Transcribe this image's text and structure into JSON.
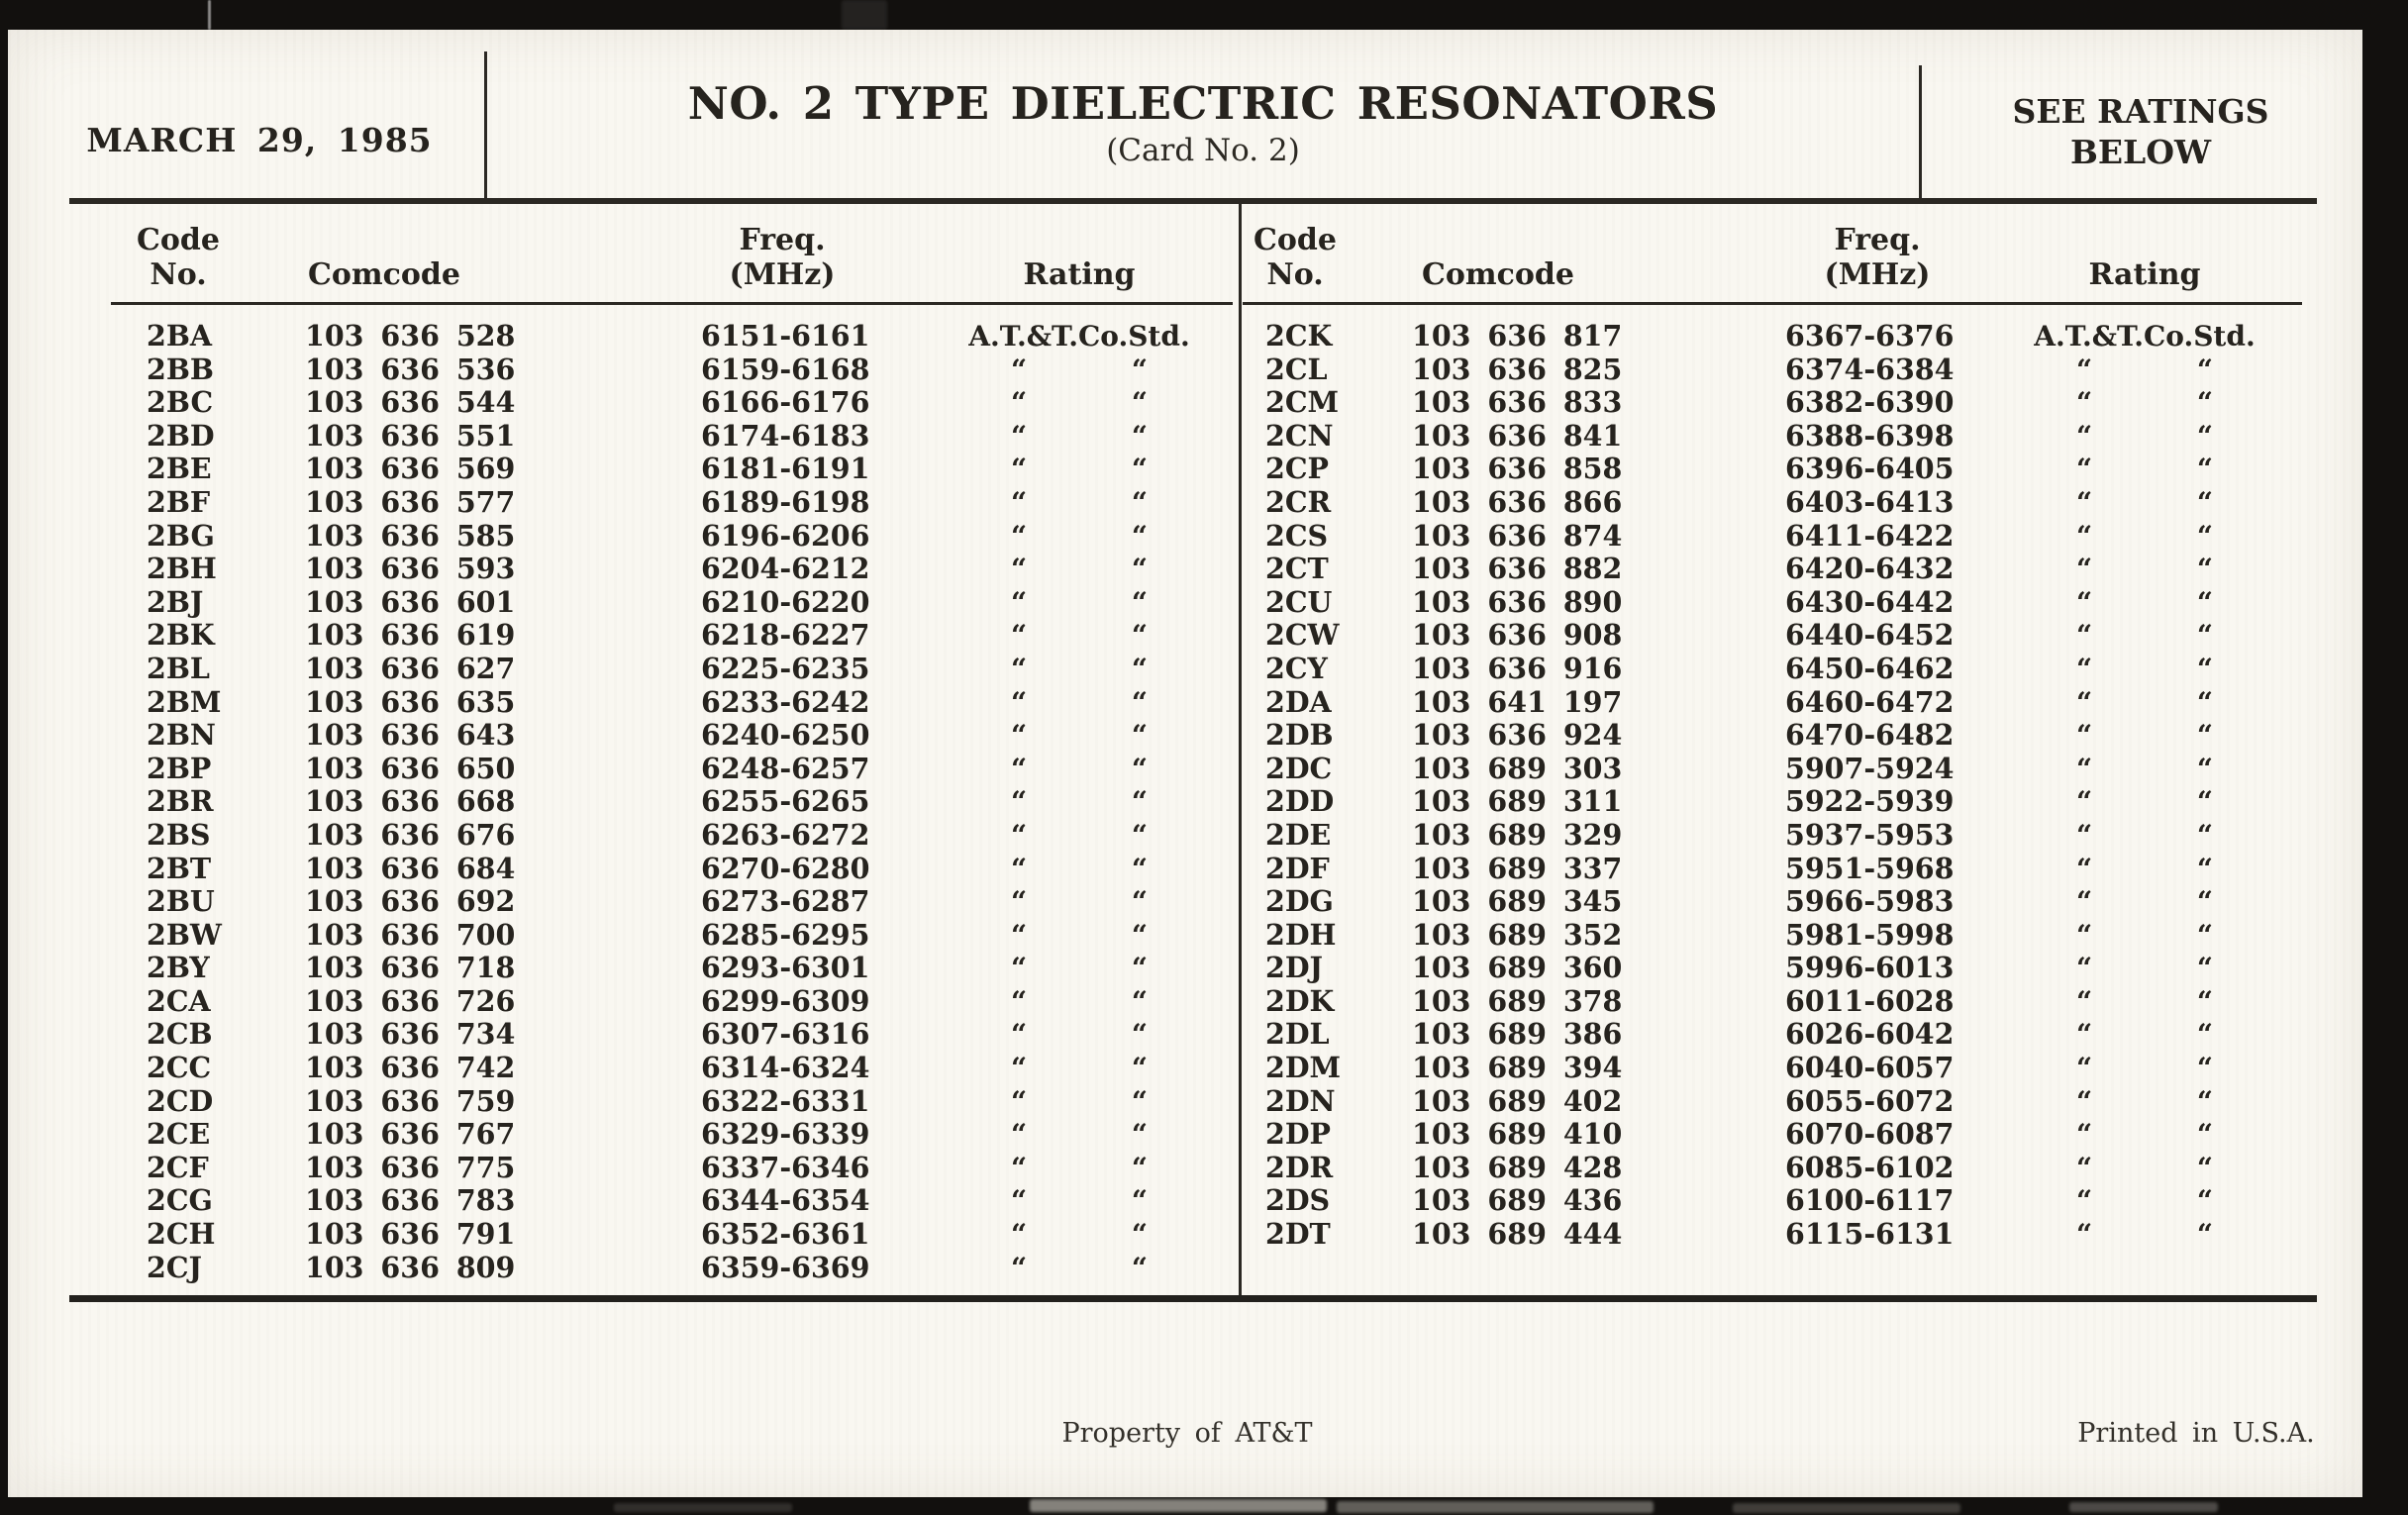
{
  "colors": {
    "paper": "#f9f7f1",
    "ink": "#26231e",
    "background": "#12100e"
  },
  "header": {
    "date": "MARCH 29, 1985",
    "title": "NO. 2 TYPE DIELECTRIC RESONATORS",
    "subtitle": "(Card No. 2)",
    "ratings_note_line1": "SEE RATINGS",
    "ratings_note_line2": "BELOW"
  },
  "columns": {
    "code_line1": "Code",
    "code_line2": "No.",
    "comcode": "Comcode",
    "freq_line1": "Freq.",
    "freq_line2": "(MHz)",
    "rating": "Rating"
  },
  "rating_standard": "A.T.&T.Co.Std.",
  "rating_ditto": "“ “",
  "tables": {
    "left": {
      "rows": [
        {
          "code": "2BA",
          "comcode": "103 636 528",
          "freq": "6151-6161",
          "rating": "A.T.&T.Co.Std."
        },
        {
          "code": "2BB",
          "comcode": "103 636 536",
          "freq": "6159-6168",
          "rating": "“ “"
        },
        {
          "code": "2BC",
          "comcode": "103 636 544",
          "freq": "6166-6176",
          "rating": "“ “"
        },
        {
          "code": "2BD",
          "comcode": "103 636 551",
          "freq": "6174-6183",
          "rating": "“ “"
        },
        {
          "code": "2BE",
          "comcode": "103 636 569",
          "freq": "6181-6191",
          "rating": "“ “"
        },
        {
          "code": "2BF",
          "comcode": "103 636 577",
          "freq": "6189-6198",
          "rating": "“ “"
        },
        {
          "code": "2BG",
          "comcode": "103 636 585",
          "freq": "6196-6206",
          "rating": "“ “"
        },
        {
          "code": "2BH",
          "comcode": "103 636 593",
          "freq": "6204-6212",
          "rating": "“ “"
        },
        {
          "code": "2BJ",
          "comcode": "103 636 601",
          "freq": "6210-6220",
          "rating": "“ “"
        },
        {
          "code": "2BK",
          "comcode": "103 636 619",
          "freq": "6218-6227",
          "rating": "“ “"
        },
        {
          "code": "2BL",
          "comcode": "103 636 627",
          "freq": "6225-6235",
          "rating": "“ “"
        },
        {
          "code": "2BM",
          "comcode": "103 636 635",
          "freq": "6233-6242",
          "rating": "“ “"
        },
        {
          "code": "2BN",
          "comcode": "103 636 643",
          "freq": "6240-6250",
          "rating": "“ “"
        },
        {
          "code": "2BP",
          "comcode": "103 636 650",
          "freq": "6248-6257",
          "rating": "“ “"
        },
        {
          "code": "2BR",
          "comcode": "103 636 668",
          "freq": "6255-6265",
          "rating": "“ “"
        },
        {
          "code": "2BS",
          "comcode": "103 636 676",
          "freq": "6263-6272",
          "rating": "“ “"
        },
        {
          "code": "2BT",
          "comcode": "103 636 684",
          "freq": "6270-6280",
          "rating": "“ “"
        },
        {
          "code": "2BU",
          "comcode": "103 636 692",
          "freq": "6273-6287",
          "rating": "“ “"
        },
        {
          "code": "2BW",
          "comcode": "103 636 700",
          "freq": "6285-6295",
          "rating": "“ “"
        },
        {
          "code": "2BY",
          "comcode": "103 636 718",
          "freq": "6293-6301",
          "rating": "“ “"
        },
        {
          "code": "2CA",
          "comcode": "103 636 726",
          "freq": "6299-6309",
          "rating": "“ “"
        },
        {
          "code": "2CB",
          "comcode": "103 636 734",
          "freq": "6307-6316",
          "rating": "“ “"
        },
        {
          "code": "2CC",
          "comcode": "103 636 742",
          "freq": "6314-6324",
          "rating": "“ “"
        },
        {
          "code": "2CD",
          "comcode": "103 636 759",
          "freq": "6322-6331",
          "rating": "“ “"
        },
        {
          "code": "2CE",
          "comcode": "103 636 767",
          "freq": "6329-6339",
          "rating": "“ “"
        },
        {
          "code": "2CF",
          "comcode": "103 636 775",
          "freq": "6337-6346",
          "rating": "“ “"
        },
        {
          "code": "2CG",
          "comcode": "103 636 783",
          "freq": "6344-6354",
          "rating": "“ “"
        },
        {
          "code": "2CH",
          "comcode": "103 636 791",
          "freq": "6352-6361",
          "rating": "“ “"
        },
        {
          "code": "2CJ",
          "comcode": "103 636 809",
          "freq": "6359-6369",
          "rating": "“ “"
        }
      ]
    },
    "right": {
      "rows": [
        {
          "code": "2CK",
          "comcode": "103 636 817",
          "freq": "6367-6376",
          "rating": "A.T.&T.Co.Std."
        },
        {
          "code": "2CL",
          "comcode": "103 636 825",
          "freq": "6374-6384",
          "rating": "“ “"
        },
        {
          "code": "2CM",
          "comcode": "103 636 833",
          "freq": "6382-6390",
          "rating": "“ “"
        },
        {
          "code": "2CN",
          "comcode": "103 636 841",
          "freq": "6388-6398",
          "rating": "“ “"
        },
        {
          "code": "2CP",
          "comcode": "103 636 858",
          "freq": "6396-6405",
          "rating": "“ “"
        },
        {
          "code": "2CR",
          "comcode": "103 636 866",
          "freq": "6403-6413",
          "rating": "“ “"
        },
        {
          "code": "2CS",
          "comcode": "103 636 874",
          "freq": "6411-6422",
          "rating": "“ “"
        },
        {
          "code": "2CT",
          "comcode": "103 636 882",
          "freq": "6420-6432",
          "rating": "“ “"
        },
        {
          "code": "2CU",
          "comcode": "103 636 890",
          "freq": "6430-6442",
          "rating": "“ “"
        },
        {
          "code": "2CW",
          "comcode": "103 636 908",
          "freq": "6440-6452",
          "rating": "“ “"
        },
        {
          "code": "2CY",
          "comcode": "103 636 916",
          "freq": "6450-6462",
          "rating": "“ “"
        },
        {
          "code": "2DA",
          "comcode": "103 641 197",
          "freq": "6460-6472",
          "rating": "“ “"
        },
        {
          "code": "2DB",
          "comcode": "103 636 924",
          "freq": "6470-6482",
          "rating": "“ “"
        },
        {
          "code": "2DC",
          "comcode": "103 689 303",
          "freq": "5907-5924",
          "rating": "“ “"
        },
        {
          "code": "2DD",
          "comcode": "103 689 311",
          "freq": "5922-5939",
          "rating": "“ “"
        },
        {
          "code": "2DE",
          "comcode": "103 689 329",
          "freq": "5937-5953",
          "rating": "“ “"
        },
        {
          "code": "2DF",
          "comcode": "103 689 337",
          "freq": "5951-5968",
          "rating": "“ “"
        },
        {
          "code": "2DG",
          "comcode": "103 689 345",
          "freq": "5966-5983",
          "rating": "“ “"
        },
        {
          "code": "2DH",
          "comcode": "103 689 352",
          "freq": "5981-5998",
          "rating": "“ “"
        },
        {
          "code": "2DJ",
          "comcode": "103 689 360",
          "freq": "5996-6013",
          "rating": "“ “"
        },
        {
          "code": "2DK",
          "comcode": "103 689 378",
          "freq": "6011-6028",
          "rating": "“ “"
        },
        {
          "code": "2DL",
          "comcode": "103 689 386",
          "freq": "6026-6042",
          "rating": "“ “"
        },
        {
          "code": "2DM",
          "comcode": "103 689 394",
          "freq": "6040-6057",
          "rating": "“ “"
        },
        {
          "code": "2DN",
          "comcode": "103 689 402",
          "freq": "6055-6072",
          "rating": "“ “"
        },
        {
          "code": "2DP",
          "comcode": "103 689 410",
          "freq": "6070-6087",
          "rating": "“ “"
        },
        {
          "code": "2DR",
          "comcode": "103 689 428",
          "freq": "6085-6102",
          "rating": "“ “"
        },
        {
          "code": "2DS",
          "comcode": "103 689 436",
          "freq": "6100-6117",
          "rating": "“ “"
        },
        {
          "code": "2DT",
          "comcode": "103 689 444",
          "freq": "6115-6131",
          "rating": "“ “"
        }
      ]
    }
  },
  "footer": {
    "property": "Property of AT&T",
    "printed": "Printed in U.S.A."
  }
}
